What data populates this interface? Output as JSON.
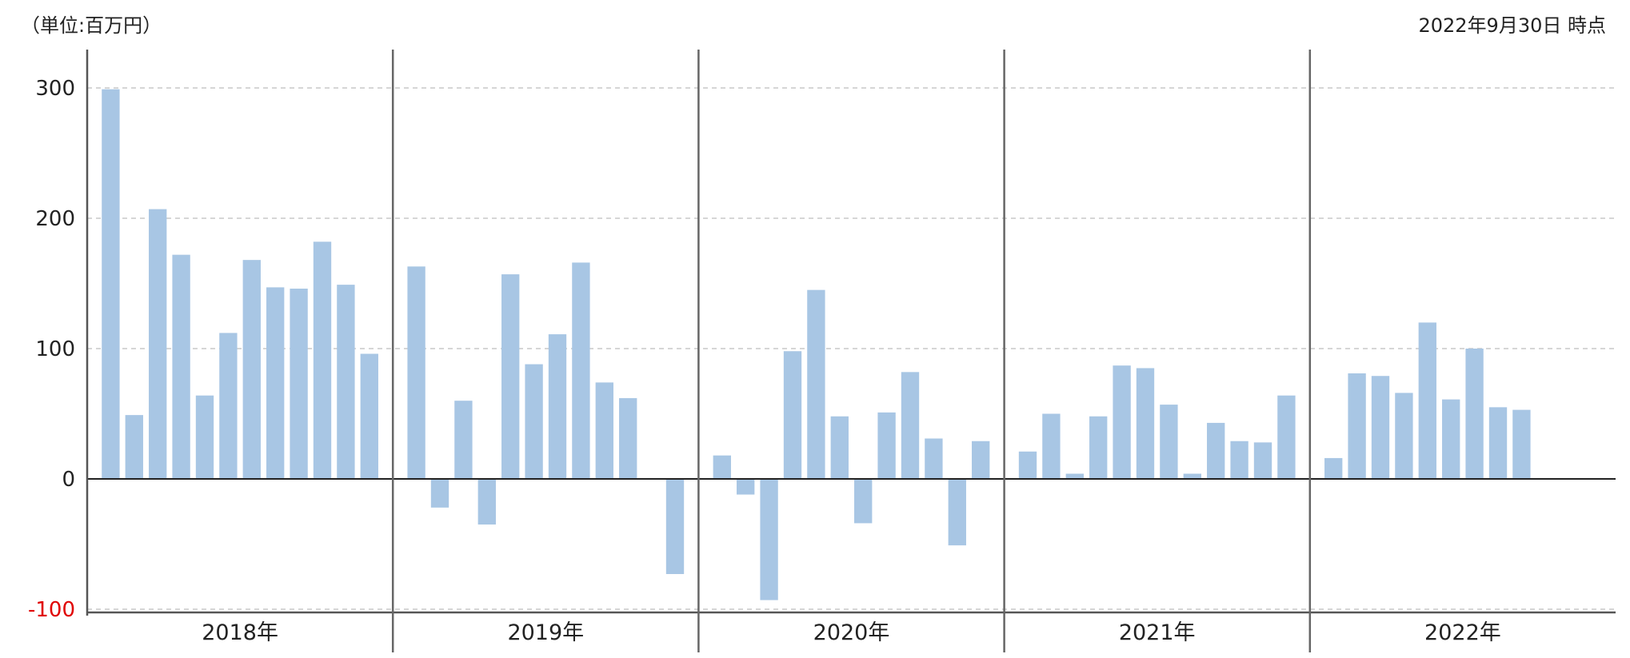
{
  "header": {
    "unit": "（単位:百万円）",
    "as_of": "2022年9月30日 時点"
  },
  "chart_data": {
    "type": "bar",
    "ylim": [
      -100,
      300
    ],
    "yticks": [
      {
        "value": 300,
        "label": "300"
      },
      {
        "value": 200,
        "label": "200"
      },
      {
        "value": 100,
        "label": "100"
      },
      {
        "value": 0,
        "label": "0"
      },
      {
        "value": -100,
        "label": "-100"
      }
    ],
    "grid": true,
    "bar_color": "#a8c6e4",
    "negative_label_color": "#e00000",
    "groups": [
      {
        "label": "2018年",
        "values": [
          299,
          49,
          207,
          172,
          64,
          112,
          168,
          147,
          146,
          182,
          149,
          96
        ]
      },
      {
        "label": "2019年",
        "values": [
          163,
          -22,
          60,
          -35,
          157,
          88,
          111,
          166,
          74,
          62,
          null,
          -73
        ]
      },
      {
        "label": "2020年",
        "values": [
          18,
          -12,
          -93,
          98,
          145,
          48,
          -34,
          51,
          82,
          31,
          -51,
          29
        ]
      },
      {
        "label": "2021年",
        "values": [
          21,
          50,
          4,
          48,
          87,
          85,
          57,
          4,
          43,
          29,
          28,
          64
        ]
      },
      {
        "label": "2022年",
        "values": [
          16,
          81,
          79,
          66,
          120,
          61,
          100,
          55,
          53
        ]
      }
    ]
  }
}
